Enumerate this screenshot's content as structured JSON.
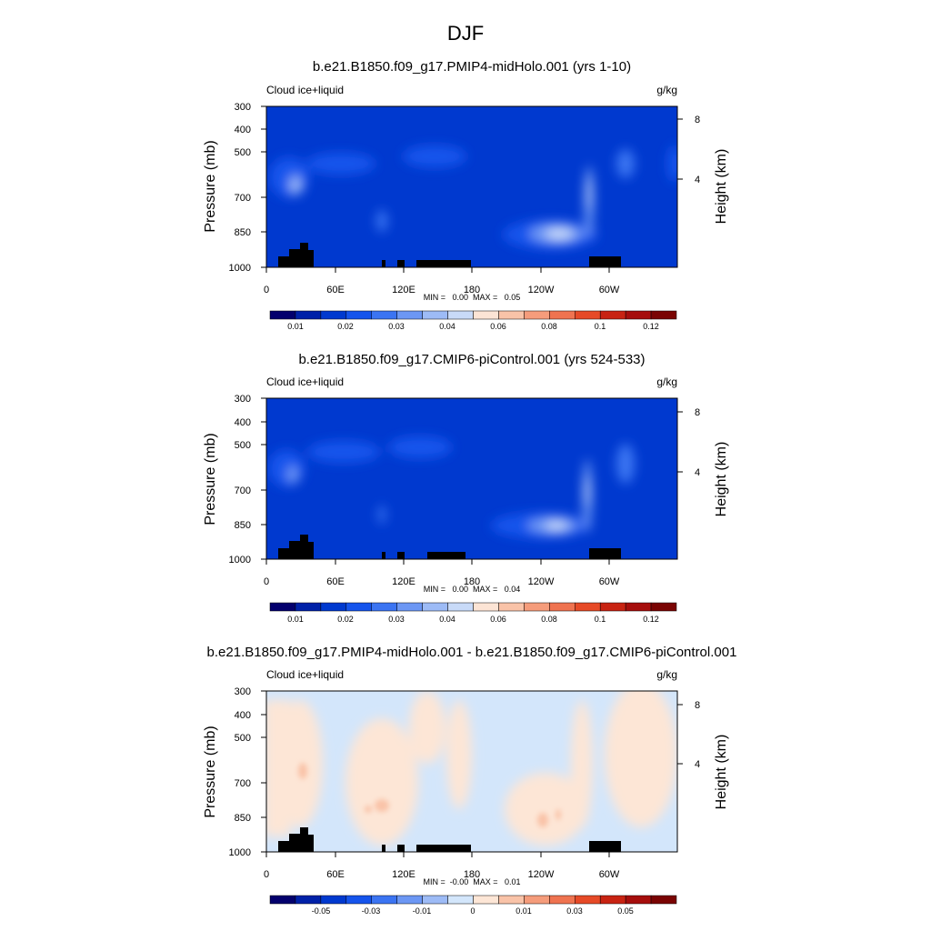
{
  "figure": {
    "title": "DJF"
  },
  "colors": {
    "seq_scale": [
      "#03006d",
      "#0021a8",
      "#0039cf",
      "#1554ec",
      "#3b74f2",
      "#6c97f4",
      "#9dbbf6",
      "#c8daf8",
      "#fce4d5",
      "#f9c3a8",
      "#f59c7b",
      "#ef7350",
      "#e64a27",
      "#c82312",
      "#a60e0c",
      "#7a0403"
    ],
    "diff_scale": [
      "#03006d",
      "#0021a8",
      "#0039cf",
      "#1554ec",
      "#3b74f2",
      "#6c97f4",
      "#9dbbf6",
      "#d3e6fb",
      "#fde6d6",
      "#f9c3a8",
      "#f59c7b",
      "#ef7350",
      "#e64a27",
      "#c82312",
      "#a60e0c",
      "#7a0403"
    ],
    "topography": "#000000"
  },
  "chart_data": [
    {
      "type": "heatmap",
      "title": "b.e21.B1850.f09_g17.PMIP4-midHolo.001 (yrs 1-10)",
      "variable": "Cloud ice+liquid",
      "units": "g/kg",
      "ylabel": "Pressure (mb)",
      "ylabel_right": "Height (km)",
      "x_ticks": [
        "0",
        "60E",
        "120E",
        "180",
        "120W",
        "60W"
      ],
      "y_ticks": [
        "300",
        "400",
        "500",
        "700",
        "850",
        "1000"
      ],
      "y2_ticks": [
        "8",
        "4"
      ],
      "x_range": [
        0,
        360
      ],
      "y_range_mb": [
        1000,
        300
      ],
      "min_max_text": "MIN =   0.00  MAX =   0.05",
      "colorbar_labels": [
        "0.01",
        "0.02",
        "0.03",
        "0.04",
        "0.06",
        "0.08",
        "0.1",
        "0.12"
      ],
      "features": [
        {
          "lon": 27,
          "p": 650,
          "value": 0.03
        },
        {
          "lon": 27,
          "p": 560,
          "value": 0.015
        },
        {
          "lon": 12,
          "p": 880,
          "value": 0.02
        },
        {
          "lon": 80,
          "p": 550,
          "value": 0.013
        },
        {
          "lon": 155,
          "p": 540,
          "value": 0.013
        },
        {
          "lon": 100,
          "p": 800,
          "value": 0.02
        },
        {
          "lon": 260,
          "p": 860,
          "value": 0.05
        },
        {
          "lon": 285,
          "p": 700,
          "value": 0.05
        },
        {
          "lon": 310,
          "p": 560,
          "value": 0.018
        },
        {
          "lon": 355,
          "p": 560,
          "value": 0.012
        }
      ]
    },
    {
      "type": "heatmap",
      "title": "b.e21.B1850.f09_g17.CMIP6-piControl.001 (yrs 524-533)",
      "variable": "Cloud ice+liquid",
      "units": "g/kg",
      "ylabel": "Pressure (mb)",
      "ylabel_right": "Height (km)",
      "x_ticks": [
        "0",
        "60E",
        "120E",
        "180",
        "120W",
        "60W"
      ],
      "y_ticks": [
        "300",
        "400",
        "500",
        "700",
        "850",
        "1000"
      ],
      "y2_ticks": [
        "8",
        "4"
      ],
      "x_range": [
        0,
        360
      ],
      "y_range_mb": [
        1000,
        300
      ],
      "min_max_text": "MIN =   0.00  MAX =   0.04",
      "colorbar_labels": [
        "0.01",
        "0.02",
        "0.03",
        "0.04",
        "0.06",
        "0.08",
        "0.1",
        "0.12"
      ],
      "features": [
        {
          "lon": 25,
          "p": 640,
          "value": 0.025
        },
        {
          "lon": 12,
          "p": 880,
          "value": 0.02
        },
        {
          "lon": 80,
          "p": 530,
          "value": 0.013
        },
        {
          "lon": 150,
          "p": 530,
          "value": 0.013
        },
        {
          "lon": 100,
          "p": 840,
          "value": 0.018
        },
        {
          "lon": 255,
          "p": 870,
          "value": 0.04
        },
        {
          "lon": 283,
          "p": 690,
          "value": 0.04
        },
        {
          "lon": 310,
          "p": 560,
          "value": 0.018
        }
      ]
    },
    {
      "type": "heatmap",
      "title": "b.e21.B1850.f09_g17.PMIP4-midHolo.001 - b.e21.B1850.f09_g17.CMIP6-piControl.001",
      "variable": "Cloud ice+liquid",
      "units": "g/kg",
      "ylabel": "Pressure (mb)",
      "ylabel_right": "Height (km)",
      "x_ticks": [
        "0",
        "60E",
        "120E",
        "180",
        "120W",
        "60W"
      ],
      "y_ticks": [
        "300",
        "400",
        "500",
        "700",
        "850",
        "1000"
      ],
      "y2_ticks": [
        "8",
        "4"
      ],
      "x_range": [
        0,
        360
      ],
      "y_range_mb": [
        1000,
        300
      ],
      "min_max_text": "MIN =  -0.00  MAX =   0.01",
      "colorbar_labels": [
        "-0.05",
        "-0.03",
        "-0.01",
        "0",
        "0.01",
        "0.03",
        "0.05"
      ],
      "features": [
        {
          "lon": 30,
          "p": 680,
          "value": 0.002
        },
        {
          "lon": 100,
          "p": 810,
          "value": 0.004
        },
        {
          "lon": 240,
          "p": 830,
          "value": 0.003
        }
      ]
    }
  ]
}
